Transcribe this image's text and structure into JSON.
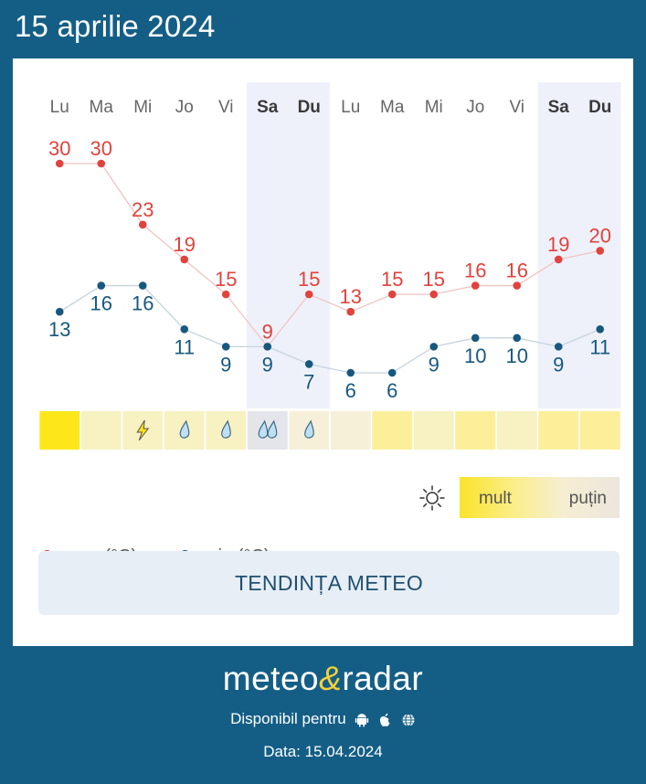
{
  "header": {
    "date": "15 aprilie 2024"
  },
  "chart_data": {
    "type": "line",
    "categories": [
      "Lu",
      "Ma",
      "Mi",
      "Jo",
      "Vi",
      "Sa",
      "Du",
      "Lu",
      "Ma",
      "Mi",
      "Jo",
      "Vi",
      "Sa",
      "Du"
    ],
    "weekend_indices": [
      5,
      6,
      12,
      13
    ],
    "series": [
      {
        "name": "max (°C)",
        "color": "#e0433d",
        "values": [
          30,
          30,
          23,
          19,
          15,
          9,
          15,
          13,
          15,
          15,
          16,
          16,
          19,
          20
        ]
      },
      {
        "name": "min (°C)",
        "color": "#17587e",
        "values": [
          13,
          16,
          16,
          11,
          9,
          9,
          7,
          6,
          6,
          9,
          10,
          10,
          9,
          11
        ]
      }
    ],
    "ylim": [
      6,
      30
    ],
    "sunshine": {
      "legend_high": "mult",
      "legend_low": "puțin",
      "levels": [
        1.0,
        0.35,
        0.35,
        0.35,
        0.35,
        0.0,
        0.3,
        0.3,
        0.5,
        0.35,
        0.5,
        0.35,
        0.5,
        0.5
      ],
      "icons": [
        "",
        "",
        "thunder-icon",
        "rain-drop-icon",
        "rain-drop-icon",
        "heavy-rain-icon",
        "rain-drop-icon",
        "",
        "",
        "",
        "",
        "",
        "",
        ""
      ]
    }
  },
  "legend": {
    "max_label": "max (°C)",
    "min_label": "min (°C)"
  },
  "trend_button": {
    "label": "TENDINȚA METEO"
  },
  "footer": {
    "logo_left": "meteo",
    "logo_amp": "&",
    "logo_right": "radar",
    "available_text": "Disponibil pentru",
    "date_text": "Data: 15.04.2024"
  },
  "colors": {
    "background": "#145e86",
    "max": "#e0433d",
    "min": "#17587e",
    "weekend_shade": "#eef1fa",
    "sun_high": "#fbe32a",
    "sun_low": "#f6eed2"
  }
}
